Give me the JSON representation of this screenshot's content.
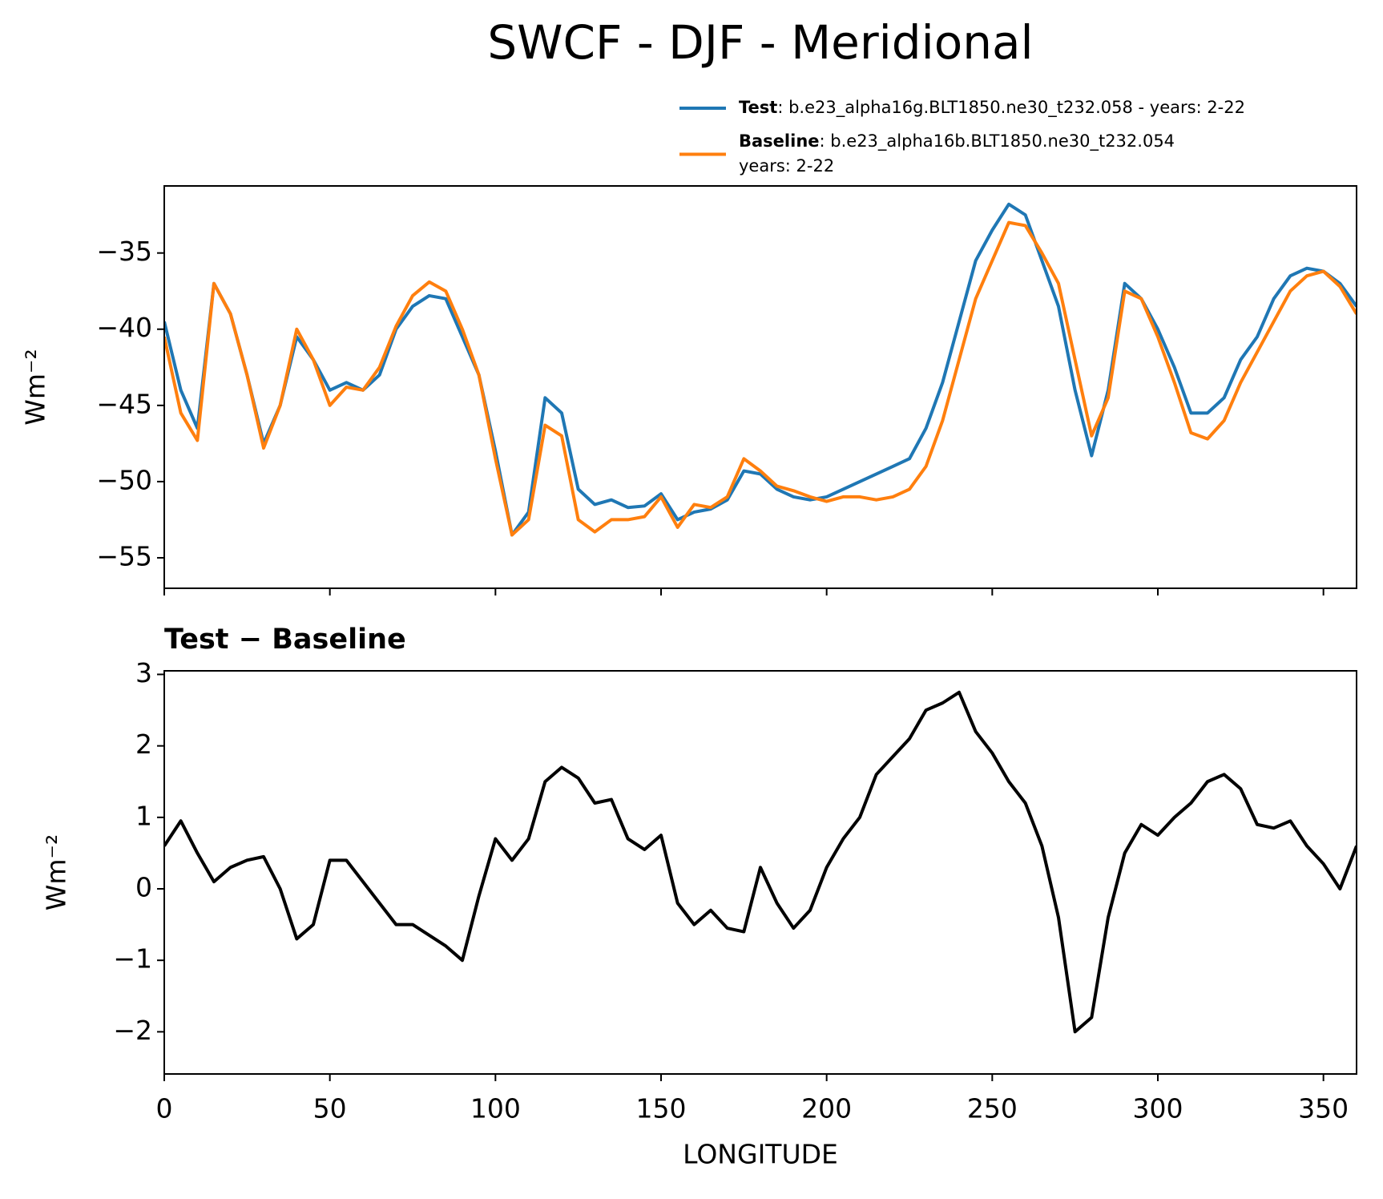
{
  "title": "SWCF - DJF - Meridional",
  "chart_data": [
    {
      "type": "line",
      "ylabel": "Wm⁻²",
      "legend": "upper right outside",
      "show_xticklabels": false,
      "x": [
        0,
        5,
        10,
        15,
        20,
        25,
        30,
        35,
        40,
        45,
        50,
        55,
        60,
        65,
        70,
        75,
        80,
        85,
        90,
        95,
        100,
        105,
        110,
        115,
        120,
        125,
        130,
        135,
        140,
        145,
        150,
        155,
        160,
        165,
        170,
        175,
        180,
        185,
        190,
        195,
        200,
        205,
        210,
        215,
        220,
        225,
        230,
        235,
        240,
        245,
        250,
        255,
        260,
        265,
        270,
        275,
        280,
        285,
        290,
        295,
        300,
        305,
        310,
        315,
        320,
        325,
        330,
        335,
        340,
        345,
        350,
        355,
        360
      ],
      "xlim": [
        0,
        360
      ],
      "xticks": [
        0,
        50,
        100,
        150,
        200,
        250,
        300,
        350
      ],
      "ylim": [
        -57,
        -30.6
      ],
      "yticks": [
        {
          "value": -55,
          "label": "−55"
        },
        {
          "value": -50,
          "label": "−50"
        },
        {
          "value": -45,
          "label": "−45"
        },
        {
          "value": -40,
          "label": "−40"
        },
        {
          "value": -35,
          "label": "−35"
        }
      ],
      "series": [
        {
          "name": "Test",
          "description": [
            ": b.e23_alpha16g.BLT1850.ne30_t232.058 - years: 2-22"
          ],
          "color": "#1f77b4",
          "values": [
            -39.5,
            -44,
            -46.5,
            -37,
            -39,
            -43,
            -47.5,
            -45,
            -40.5,
            -42,
            -44,
            -43.5,
            -44,
            -43,
            -40,
            -38.5,
            -37.8,
            -38,
            -40.5,
            -43,
            -48,
            -53.5,
            -52,
            -44.5,
            -45.5,
            -50.5,
            -51.5,
            -51.2,
            -51.7,
            -51.6,
            -50.8,
            -52.5,
            -52,
            -51.8,
            -51.2,
            -49.3,
            -49.5,
            -50.5,
            -51,
            -51.2,
            -51,
            -50.5,
            -50,
            -49.5,
            -49,
            -48.5,
            -46.5,
            -43.5,
            -39.5,
            -35.5,
            -33.5,
            -31.8,
            -32.5,
            -35.5,
            -38.5,
            -44,
            -48.3,
            -44,
            -37,
            -38,
            -40,
            -42.5,
            -45.5,
            -45.5,
            -44.5,
            -42,
            -40.5,
            -38,
            -36.5,
            -36,
            -36.2,
            -37,
            -38.5
          ]
        },
        {
          "name": "Baseline",
          "description": [
            ": b.e23_alpha16b.BLT1850.ne30_t232.054",
            "years: 2-22"
          ],
          "color": "#ff7f0e",
          "values": [
            -40.5,
            -45.5,
            -47.3,
            -37,
            -39,
            -43,
            -47.8,
            -45,
            -40,
            -42,
            -45,
            -43.8,
            -44,
            -42.5,
            -39.8,
            -37.8,
            -36.9,
            -37.5,
            -40,
            -43,
            -48.5,
            -53.5,
            -52.5,
            -46.3,
            -47,
            -52.5,
            -53.3,
            -52.5,
            -52.5,
            -52.3,
            -51,
            -53,
            -51.5,
            -51.7,
            -51,
            -48.5,
            -49.3,
            -50.3,
            -50.6,
            -51,
            -51.3,
            -51,
            -51,
            -51.2,
            -51,
            -50.5,
            -49,
            -46,
            -42,
            -38,
            -35.5,
            -33,
            -33.2,
            -35,
            -37,
            -42,
            -47,
            -44.5,
            -37.5,
            -38,
            -40.5,
            -43.5,
            -46.8,
            -47.2,
            -46,
            -43.5,
            -41.5,
            -39.5,
            -37.5,
            -36.5,
            -36.2,
            -37.2,
            -39
          ]
        }
      ]
    },
    {
      "type": "line",
      "title": "Test − Baseline",
      "ylabel": "Wm⁻²",
      "xlabel": "LONGITUDE",
      "show_xticklabels": true,
      "color": "#000000",
      "x": [
        0,
        5,
        10,
        15,
        20,
        25,
        30,
        35,
        40,
        45,
        50,
        55,
        60,
        65,
        70,
        75,
        80,
        85,
        90,
        95,
        100,
        105,
        110,
        115,
        120,
        125,
        130,
        135,
        140,
        145,
        150,
        155,
        160,
        165,
        170,
        175,
        180,
        185,
        190,
        195,
        200,
        205,
        210,
        215,
        220,
        225,
        230,
        235,
        240,
        245,
        250,
        255,
        260,
        265,
        270,
        275,
        280,
        285,
        290,
        295,
        300,
        305,
        310,
        315,
        320,
        325,
        330,
        335,
        340,
        345,
        350,
        355,
        360
      ],
      "values": [
        0.6,
        0.95,
        0.5,
        0.1,
        0.3,
        0.4,
        0.45,
        0,
        -0.7,
        -0.5,
        0.4,
        0.4,
        0.1,
        -0.2,
        -0.5,
        -0.5,
        -0.65,
        -0.8,
        -1.0,
        -0.1,
        0.7,
        0.4,
        0.7,
        1.5,
        1.7,
        1.55,
        1.2,
        1.25,
        0.7,
        0.55,
        0.75,
        -0.2,
        -0.5,
        -0.3,
        -0.55,
        -0.6,
        0.3,
        -0.2,
        -0.55,
        -0.3,
        0.3,
        0.7,
        1.0,
        1.6,
        1.85,
        2.1,
        2.5,
        2.6,
        2.75,
        2.2,
        1.9,
        1.5,
        1.2,
        0.6,
        -0.4,
        -2.0,
        -1.8,
        -0.4,
        0.5,
        0.9,
        0.75,
        1.0,
        1.2,
        1.5,
        1.6,
        1.4,
        0.9,
        0.85,
        0.95,
        0.6,
        0.35,
        0,
        0.6
      ],
      "xlim": [
        0,
        360
      ],
      "xticks": [
        0,
        50,
        100,
        150,
        200,
        250,
        300,
        350
      ],
      "ylim": [
        -2.59,
        3.05
      ],
      "yticks": [
        {
          "value": -2,
          "label": "−2"
        },
        {
          "value": -1,
          "label": "−1"
        },
        0,
        1,
        2,
        3
      ]
    }
  ]
}
